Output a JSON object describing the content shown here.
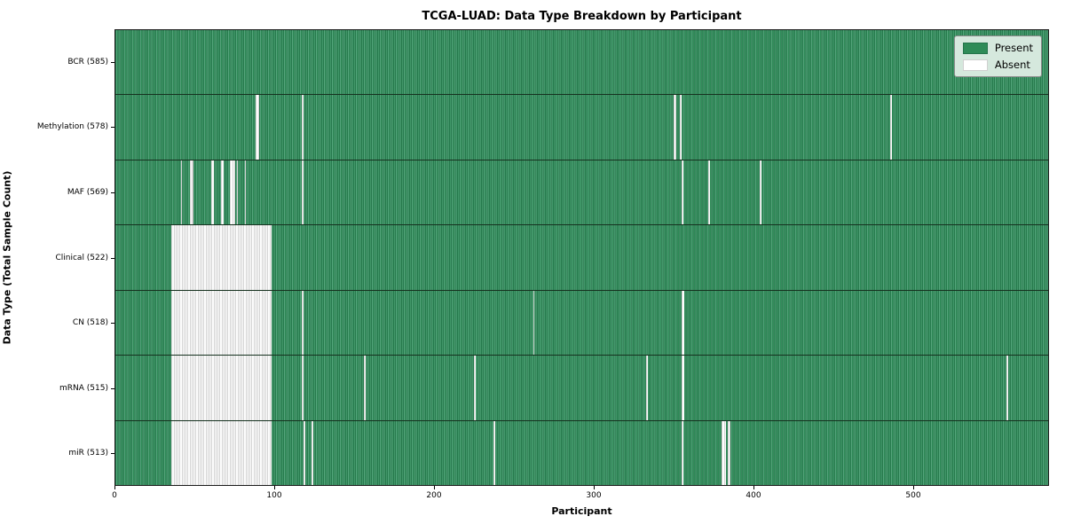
{
  "title": "TCGA-LUAD: Data Type Breakdown by Participant",
  "legend": {
    "present_label": "Present",
    "absent_label": "Absent",
    "position": "upper right"
  },
  "colors": {
    "present_green": "#2e8b57",
    "present_edge": "#1f6741",
    "absent_white": "#fdfdfd",
    "absent_edge": "#ababab",
    "legend_bg": "#d5e8dd"
  },
  "chart_data": {
    "type": "heatmap",
    "title": "TCGA-LUAD: Data Type Breakdown by Participant",
    "xlabel": "Participant",
    "ylabel": "Data Type (Total Sample Count)",
    "x_ticks": [
      0,
      100,
      200,
      300,
      400,
      500
    ],
    "x_max": 585,
    "n_participants": 585,
    "grid": false,
    "legend_entries": [
      "Present",
      "Absent"
    ],
    "legend_position": "upper right",
    "rows": [
      {
        "label": "BCR (585)",
        "data_type": "BCR",
        "present_count": 585,
        "absent_ranges": []
      },
      {
        "label": "Methylation (578)",
        "data_type": "Methylation",
        "present_count": 578,
        "absent_ranges": [
          [
            88,
            2
          ],
          [
            117,
            1
          ],
          [
            350,
            2
          ],
          [
            354,
            1
          ],
          [
            486,
            1
          ]
        ]
      },
      {
        "label": "MAF (569)",
        "data_type": "MAF",
        "present_count": 569,
        "absent_ranges": [
          [
            41,
            1
          ],
          [
            47,
            2
          ],
          [
            60,
            2
          ],
          [
            66,
            2
          ],
          [
            72,
            3
          ],
          [
            76,
            1
          ],
          [
            81,
            1
          ],
          [
            117,
            1
          ],
          [
            355,
            1
          ],
          [
            372,
            1
          ],
          [
            404,
            1
          ]
        ]
      },
      {
        "label": "Clinical (522)",
        "data_type": "Clinical",
        "present_count": 522,
        "absent_ranges": [
          [
            35,
            63
          ]
        ]
      },
      {
        "label": "CN (518)",
        "data_type": "CN",
        "present_count": 518,
        "absent_ranges": [
          [
            35,
            63
          ],
          [
            117,
            1
          ],
          [
            262,
            1
          ],
          [
            355,
            2
          ]
        ]
      },
      {
        "label": "mRNA (515)",
        "data_type": "mRNA",
        "present_count": 515,
        "absent_ranges": [
          [
            35,
            63
          ],
          [
            117,
            1
          ],
          [
            156,
            1
          ],
          [
            225,
            1
          ],
          [
            333,
            1
          ],
          [
            355,
            2
          ],
          [
            559,
            1
          ]
        ]
      },
      {
        "label": "miR (513)",
        "data_type": "miR",
        "present_count": 513,
        "absent_ranges": [
          [
            35,
            63
          ],
          [
            118,
            1
          ],
          [
            123,
            1
          ],
          [
            237,
            1
          ],
          [
            355,
            1
          ],
          [
            380,
            3
          ],
          [
            384,
            2
          ]
        ]
      }
    ]
  }
}
